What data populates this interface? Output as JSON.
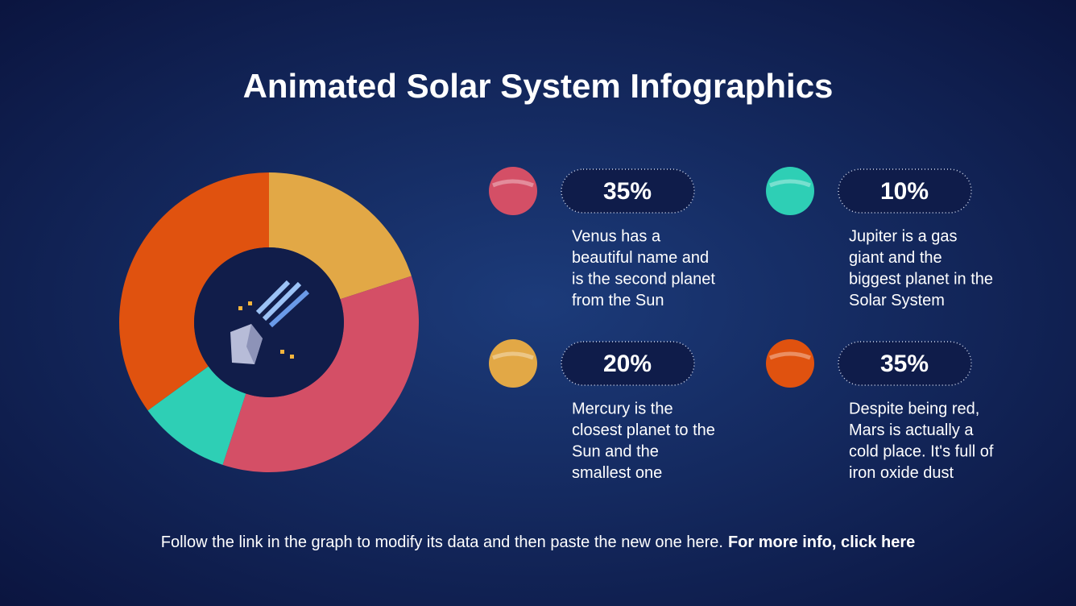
{
  "chart_data": {
    "type": "pie",
    "donut": true,
    "title": "Animated Solar System Infographics",
    "values": [
      20,
      35,
      10,
      35
    ],
    "value_labels": [
      "20%",
      "35%",
      "10%",
      "35%"
    ],
    "colors": [
      "#e2a846",
      "#d44f66",
      "#2ecfb5",
      "#e0520f"
    ],
    "annotations": [
      [
        "Mercury is the",
        "closest planet to the",
        "Sun and the",
        "smallest one"
      ],
      [
        "Venus has a",
        "beautiful name and",
        "is the second planet",
        "from the Sun"
      ],
      [
        "Jupiter is a gas",
        "giant and the",
        "biggest planet in the",
        "Solar System"
      ],
      [
        "Despite being red,",
        "Mars is actually a",
        "cold place. It's full of",
        "iron oxide dust"
      ]
    ]
  },
  "footer": {
    "text": "Follow the link in the graph to modify its data and then paste the new one here.",
    "link": "For more info, click here"
  }
}
